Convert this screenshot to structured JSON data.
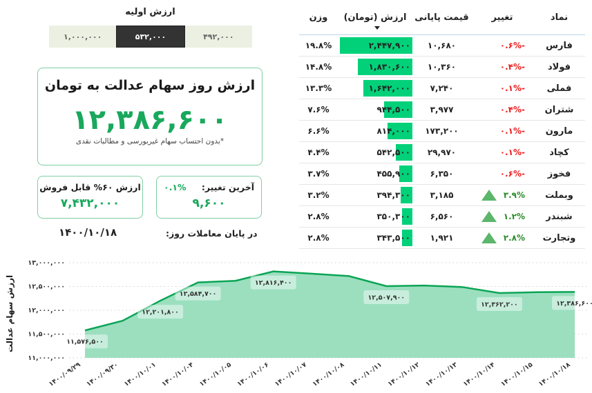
{
  "initial_value": {
    "title": "ارزش اولیه",
    "options": [
      {
        "label": "۱,۰۰۰,۰۰۰",
        "active": false
      },
      {
        "label": "۵۳۲,۰۰۰",
        "active": true
      },
      {
        "label": "۴۹۲,۰۰۰",
        "active": false
      }
    ]
  },
  "main_card": {
    "title": "ارزش روز سهام عدالت به تومان",
    "value": "۱۲,۳۸۶,۶۰۰",
    "note": "*بدون احتساب سهام غیربورسی و مطالبات نقدی"
  },
  "sellable_card": {
    "label": "ارزش ۶۰% قابل فروش",
    "value": "۷,۴۳۲,۰۰۰"
  },
  "change_card": {
    "label": "آخرین تغییر:",
    "percent": "۰.۱%",
    "value": "۹,۶۰۰"
  },
  "end_of_day": {
    "label": "در پایان معاملات روز:",
    "date": "۱۴۰۰/۱۰/۱۸"
  },
  "table": {
    "headers": {
      "symbol": "نماد",
      "change": "تغییر",
      "close_price": "قیمت پایانی",
      "value": "ارزش (تومان)",
      "weight": "وزن"
    },
    "sorted_by": "value",
    "rows": [
      {
        "symbol": "فارس",
        "change": "-۰.۶%",
        "direction": "down",
        "close_price": "۱۰,۶۸۰",
        "value": "۲,۴۴۷,۹۰۰",
        "bar_pct": 97,
        "weight": "۱۹.۸%"
      },
      {
        "symbol": "فولاد",
        "change": "-۰.۴%",
        "direction": "down",
        "close_price": "۱۰,۳۶۰",
        "value": "۱,۸۳۰,۶۰۰",
        "bar_pct": 73,
        "weight": "۱۴.۸%"
      },
      {
        "symbol": "فملی",
        "change": "-۰.۱%",
        "direction": "down",
        "close_price": "۷,۲۴۰",
        "value": "۱,۶۴۲,۰۰۰",
        "bar_pct": 66,
        "weight": "۱۳.۳%"
      },
      {
        "symbol": "شتران",
        "change": "-۰.۴%",
        "direction": "down",
        "close_price": "۳,۹۷۷",
        "value": "۹۴۴,۵۰۰",
        "bar_pct": 38,
        "weight": "۷.۶%"
      },
      {
        "symbol": "مارون",
        "change": "-۰.۱%",
        "direction": "down",
        "close_price": "۱۷۳,۲۰۰",
        "value": "۸۱۴,۰۰۰",
        "bar_pct": 33,
        "weight": "۶.۶%"
      },
      {
        "symbol": "کچاد",
        "change": "-۰.۱%",
        "direction": "down",
        "close_price": "۲۹,۹۷۰",
        "value": "۵۴۲,۵۰۰",
        "bar_pct": 22,
        "weight": "۴.۴%"
      },
      {
        "symbol": "فخوز",
        "change": "-۰.۶%",
        "direction": "down",
        "close_price": "۶,۳۵۰",
        "value": "۴۵۵,۹۰۰",
        "bar_pct": 18,
        "weight": "۳.۷%"
      },
      {
        "symbol": "وبملت",
        "change": "۳.۹%",
        "direction": "up",
        "close_price": "۳,۱۸۵",
        "value": "۳۹۴,۳۰۰",
        "bar_pct": 16,
        "weight": "۳.۲%"
      },
      {
        "symbol": "شبندر",
        "change": "۱.۲%",
        "direction": "up",
        "close_price": "۶,۵۶۰",
        "value": "۳۵۰,۳۰۰",
        "bar_pct": 14,
        "weight": "۲.۸%"
      },
      {
        "symbol": "وتجارت",
        "change": "۲.۸%",
        "direction": "up",
        "close_price": "۱,۹۲۱",
        "value": "۳۴۳,۵۰۰",
        "bar_pct": 14,
        "weight": "۲.۸%"
      }
    ]
  },
  "colors": {
    "accent_green": "#19a85c",
    "bar_green": "#03d17a",
    "negative_red": "#ee1b1b",
    "positive_green": "#2a8a2a",
    "chart_line": "#0aa455",
    "chart_fill": "#9bdfbf",
    "active_button": "#333333",
    "inactive_button": "#ecf0e2"
  },
  "chart_data": {
    "type": "area",
    "title": "",
    "xlabel": "",
    "ylabel": "ارزش سهام عدالت",
    "ylim": [
      11000000,
      13000000
    ],
    "y_ticks": [
      "۱۱,۰۰۰,۰۰۰",
      "۱۱,۵۰۰,۰۰۰",
      "۱۲,۰۰۰,۰۰۰",
      "۱۲,۵۰۰,۰۰۰",
      "۱۳,۰۰۰,۰۰۰"
    ],
    "grid": true,
    "categories": [
      "۱۴۰۰/۰۹/۲۹",
      "۱۴۰۰/۰۹/۳۰",
      "۱۴۰۰/۱۰/۰۱",
      "۱۴۰۰/۱۰/۰۴",
      "۱۴۰۰/۱۰/۰۵",
      "۱۴۰۰/۱۰/۰۶",
      "۱۴۰۰/۱۰/۰۷",
      "۱۴۰۰/۱۰/۰۸",
      "۱۴۰۰/۱۰/۱۱",
      "۱۴۰۰/۱۰/۱۲",
      "۱۴۰۰/۱۰/۱۳",
      "۱۴۰۰/۱۰/۱۴",
      "۱۴۰۰/۱۰/۱۵",
      "۱۴۰۰/۱۰/۱۸"
    ],
    "values": [
      11576500,
      11780000,
      12201800,
      12584700,
      12620000,
      12816400,
      12770000,
      12720000,
      12507900,
      12520000,
      12490000,
      12362200,
      12380000,
      12386600
    ],
    "data_labels": [
      {
        "index": 0,
        "text": "۱۱,۵۷۶,۵۰۰"
      },
      {
        "index": 2,
        "text": "۱۲,۲۰۱,۸۰۰"
      },
      {
        "index": 3,
        "text": "۱۲,۵۸۴,۷۰۰"
      },
      {
        "index": 5,
        "text": "۱۲,۸۱۶,۴۰۰"
      },
      {
        "index": 8,
        "text": "۱۲,۵۰۷,۹۰۰"
      },
      {
        "index": 11,
        "text": "۱۲,۳۶۲,۲۰۰"
      },
      {
        "index": 13,
        "text": "۱۲,۳۸۶,۶۰۰"
      }
    ]
  }
}
